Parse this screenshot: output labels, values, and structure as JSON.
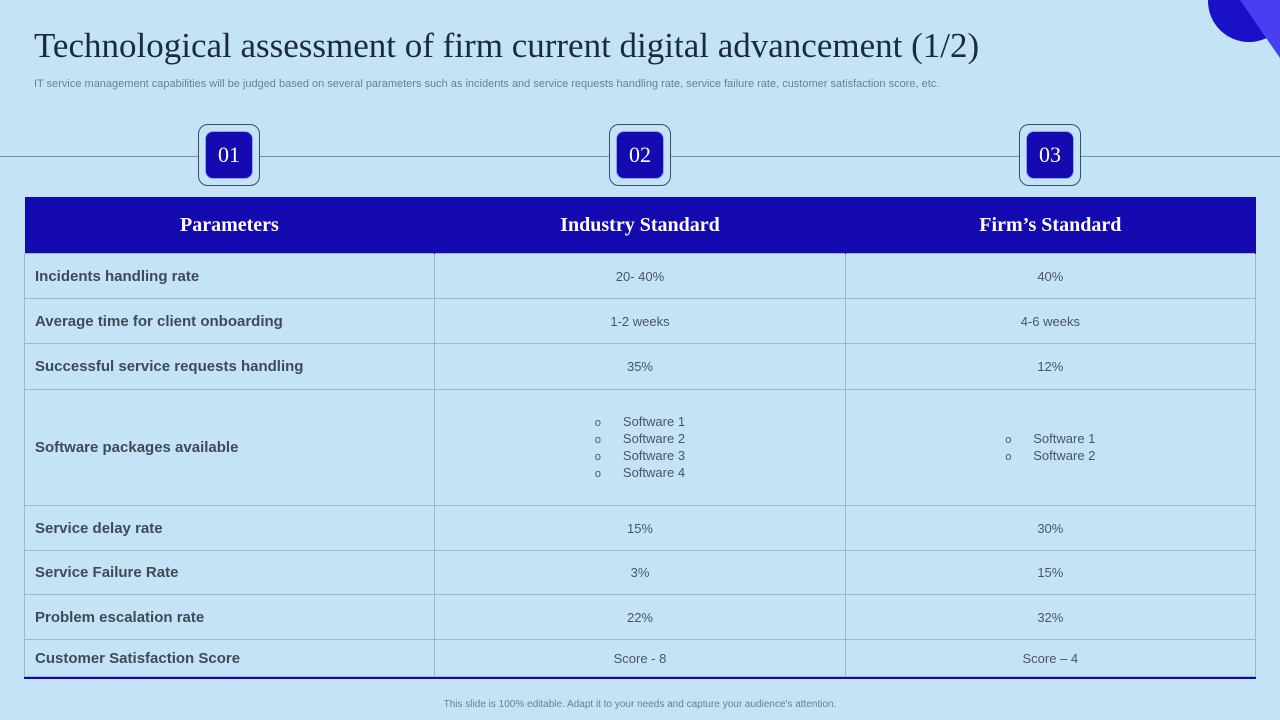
{
  "title": "Technological assessment of firm current digital advancement (1/2)",
  "subtitle": "IT service management capabilities will be judged based on several parameters such as incidents and service requests handling rate, service failure rate, customer satisfaction score, etc.",
  "badges": [
    "01",
    "02",
    "03"
  ],
  "table": {
    "headers": [
      "Parameters",
      "Industry Standard",
      "Firm’s Standard"
    ],
    "rows": [
      {
        "param": "Incidents handling rate",
        "industry": "20- 40%",
        "firm": "40%"
      },
      {
        "param": "Average time for client onboarding",
        "industry": "1-2 weeks",
        "firm": "4-6 weeks"
      },
      {
        "param": "Successful service requests handling",
        "industry": "35%",
        "firm": "12%"
      },
      {
        "param": "Software packages available",
        "industry_list": [
          "Software  1",
          "Software  2",
          "Software  3",
          "Software  4"
        ],
        "firm_list": [
          "Software  1",
          "Software  2"
        ]
      },
      {
        "param": "Service delay rate",
        "industry": "15%",
        "firm": "30%"
      },
      {
        "param": "Service Failure Rate",
        "industry": "3%",
        "firm": "15%"
      },
      {
        "param": "Problem escalation rate",
        "industry": "22%",
        "firm": "32%"
      },
      {
        "param": "Customer Satisfaction Score",
        "industry": "Score - 8",
        "firm": "Score – 4"
      }
    ]
  },
  "bullet_glyph": "o",
  "footer": "This slide is 100% editable.  Adapt it to your needs and capture your audience's attention.",
  "colors": {
    "background": "#c5e3f7",
    "accent": "#140aaf",
    "title": "#1b2a40"
  }
}
